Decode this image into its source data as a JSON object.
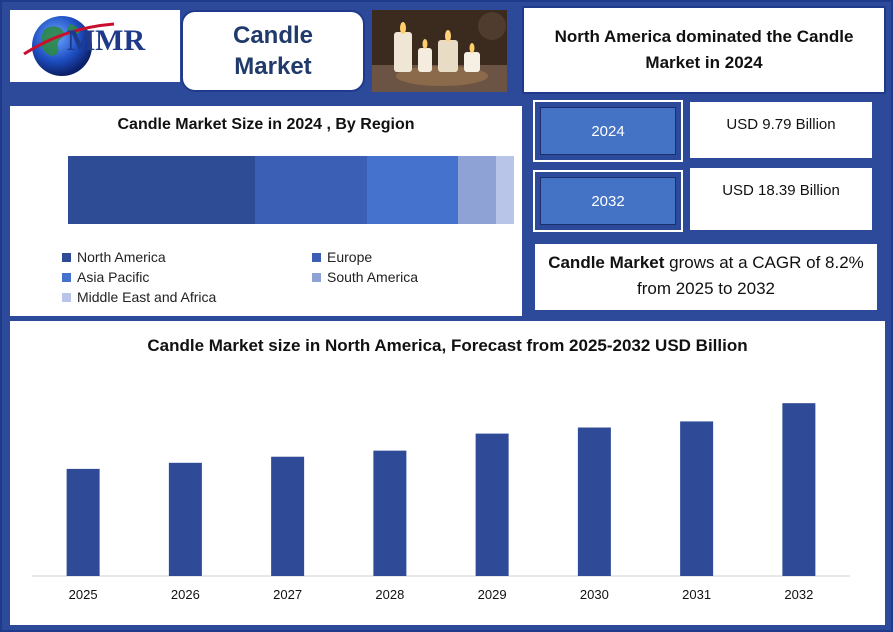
{
  "header": {
    "logo_text": "MMR",
    "title": "Candle\nMarket",
    "headline": "North America dominated the Candle Market in 2024"
  },
  "region_chart": {
    "title": "Candle Market Size in 2024 , By Region",
    "segments": [
      {
        "name": "North America",
        "share": 0.42,
        "color": "#2e4c96"
      },
      {
        "name": "Europe",
        "share": 0.25,
        "color": "#3a5fb5"
      },
      {
        "name": "Asia Pacific",
        "share": 0.205,
        "color": "#4572cc"
      },
      {
        "name": "South America",
        "share": 0.085,
        "color": "#8ea2d6"
      },
      {
        "name": "Middle East and Africa",
        "share": 0.04,
        "color": "#b9c5e8"
      }
    ]
  },
  "stats": {
    "year1": "2024",
    "value1": "USD 9.79 Billion",
    "year2": "2032",
    "value2": "USD 18.39 Billion",
    "cagr_bold": "Candle Market",
    "cagr_text": " grows at a CAGR of 8.2% from 2025 to 2032"
  },
  "chart_data": {
    "type": "bar",
    "title": "Candle Market size in North America, Forecast from 2025-2032 USD Billion",
    "categories": [
      "2025",
      "2026",
      "2027",
      "2028",
      "2029",
      "2030",
      "2031",
      "2032"
    ],
    "values": [
      4.4,
      4.65,
      4.9,
      5.15,
      5.85,
      6.1,
      6.35,
      7.1
    ],
    "ylim": [
      0,
      7.6
    ],
    "bar_color": "#2f4b98",
    "grid": false
  }
}
